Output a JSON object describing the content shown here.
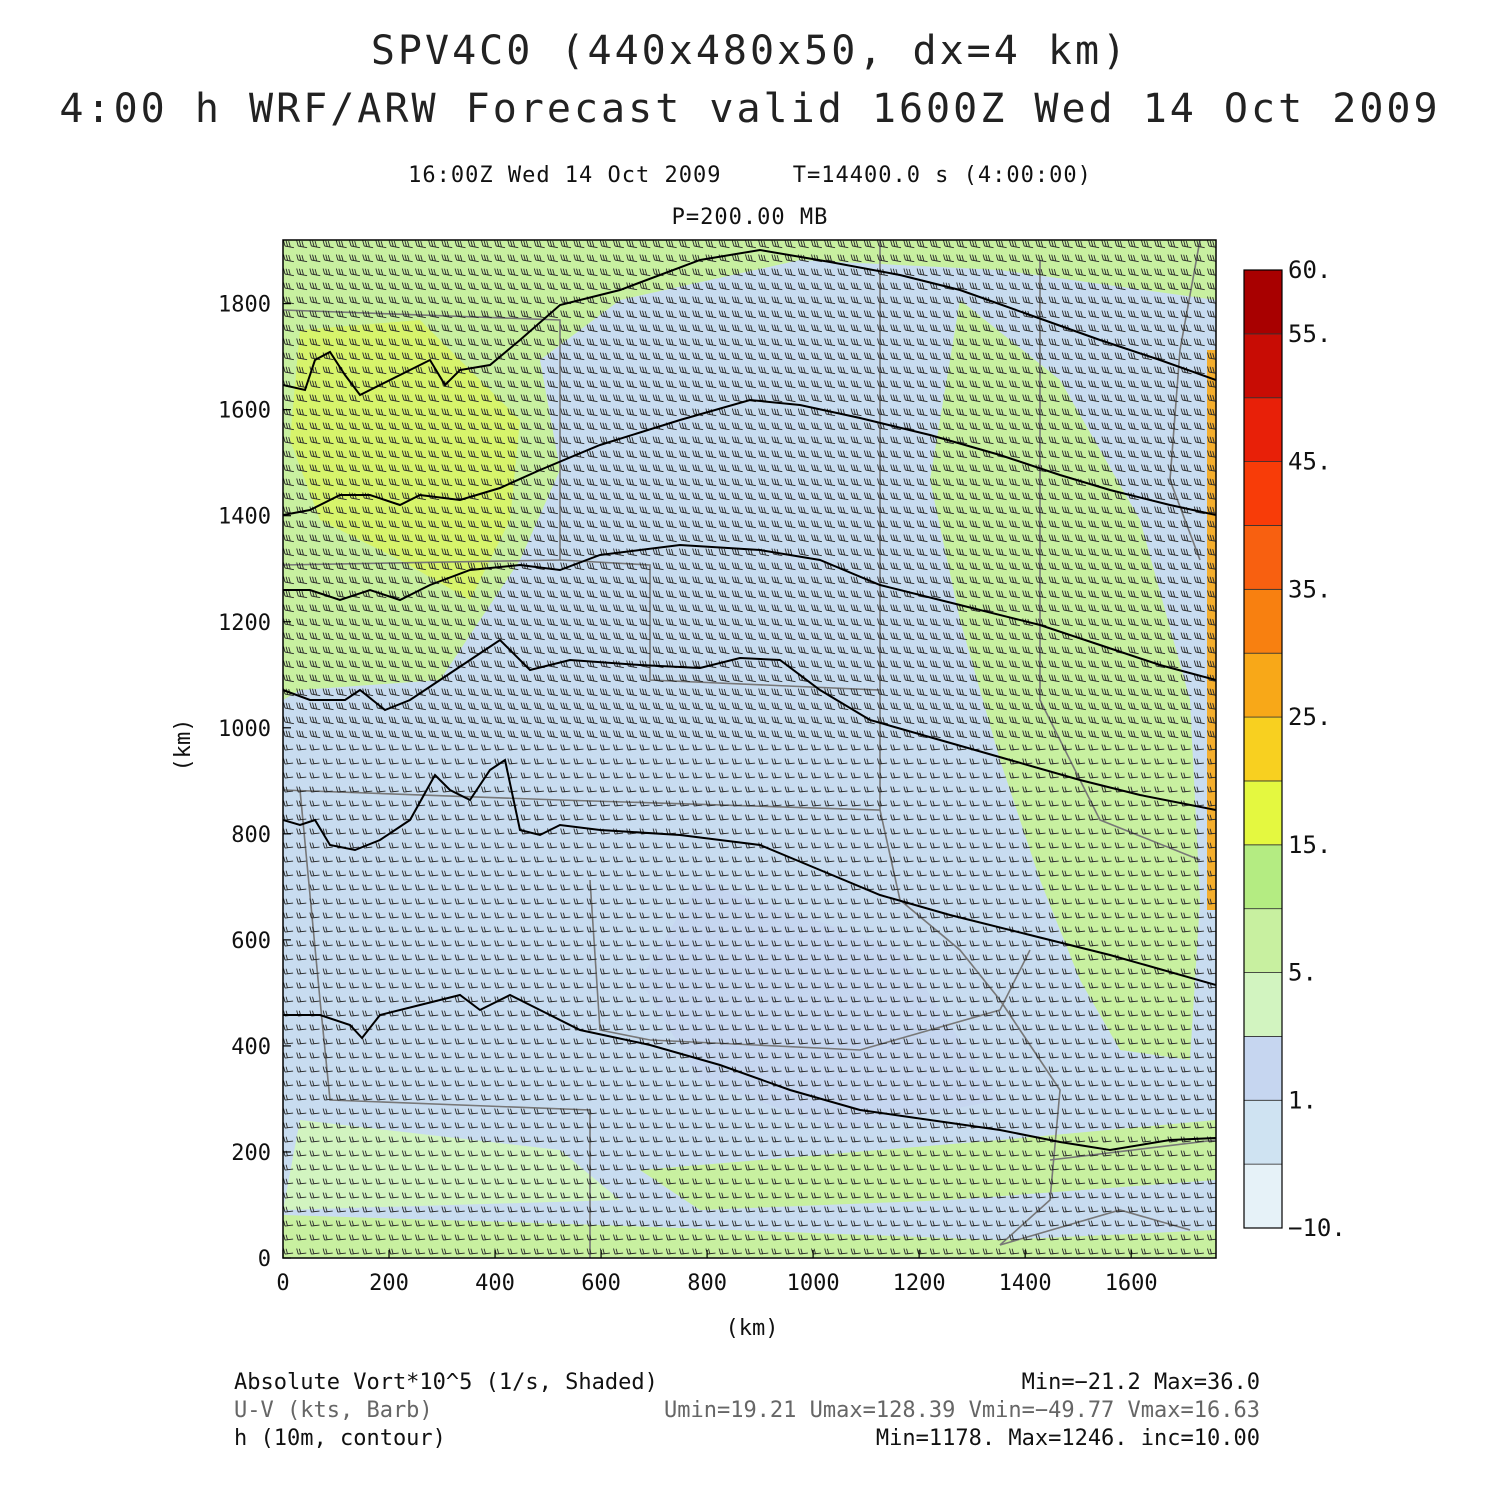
{
  "header": {
    "title_line1": "SPV4C0 (440x480x50, dx=4 km)",
    "title_line2": "4:00 h WRF/ARW Forecast valid 1600Z Wed 14 Oct 2009",
    "subtitle_time": "16:00Z Wed 14 Oct 2009     T=14400.0 s (4:00:00)",
    "subtitle_level": "P=200.00 MB"
  },
  "map": {
    "x_axis_label": "(km)",
    "y_axis_label": "(km)",
    "x_range_km": [
      0,
      1760
    ],
    "y_range_km": [
      0,
      1920
    ],
    "x_ticks": [
      "0",
      "200",
      "400",
      "600",
      "800",
      "1000",
      "1200",
      "1400",
      "1600"
    ],
    "y_ticks": [
      "0",
      "200",
      "400",
      "600",
      "800",
      "1000",
      "1200",
      "1400",
      "1600",
      "1800"
    ],
    "background_color": "#c8dcf0"
  },
  "colorbar": {
    "labels": [
      "60.",
      "55.",
      "45.",
      "35.",
      "25.",
      "15.",
      "5.",
      "1.",
      "−10."
    ],
    "colors": [
      "#e6f2f8",
      "#cfe3f2",
      "#c6d6f0",
      "#d2f4c0",
      "#c8f0a0",
      "#b4ec82",
      "#e4f840",
      "#f8d020",
      "#f8a818",
      "#f88010",
      "#f86010",
      "#f83c08",
      "#e82008",
      "#c80c04",
      "#a80000"
    ]
  },
  "contours": {
    "label": "h (10m, contour)",
    "min": "1178.",
    "max": "1246.",
    "inc": "10.00"
  },
  "legend": {
    "shaded_label": "Absolute Vort*10^5 (1/s, Shaded)",
    "shaded_stats": "Min=−21.2 Max=36.0",
    "barb_label": "U-V (kts, Barb)",
    "barb_stats": "Umin=19.21 Umax=128.39 Vmin=−49.77 Vmax=16.63",
    "contour_label": "h (10m, contour)",
    "contour_stats": "Min=1178. Max=1246. inc=10.00"
  }
}
